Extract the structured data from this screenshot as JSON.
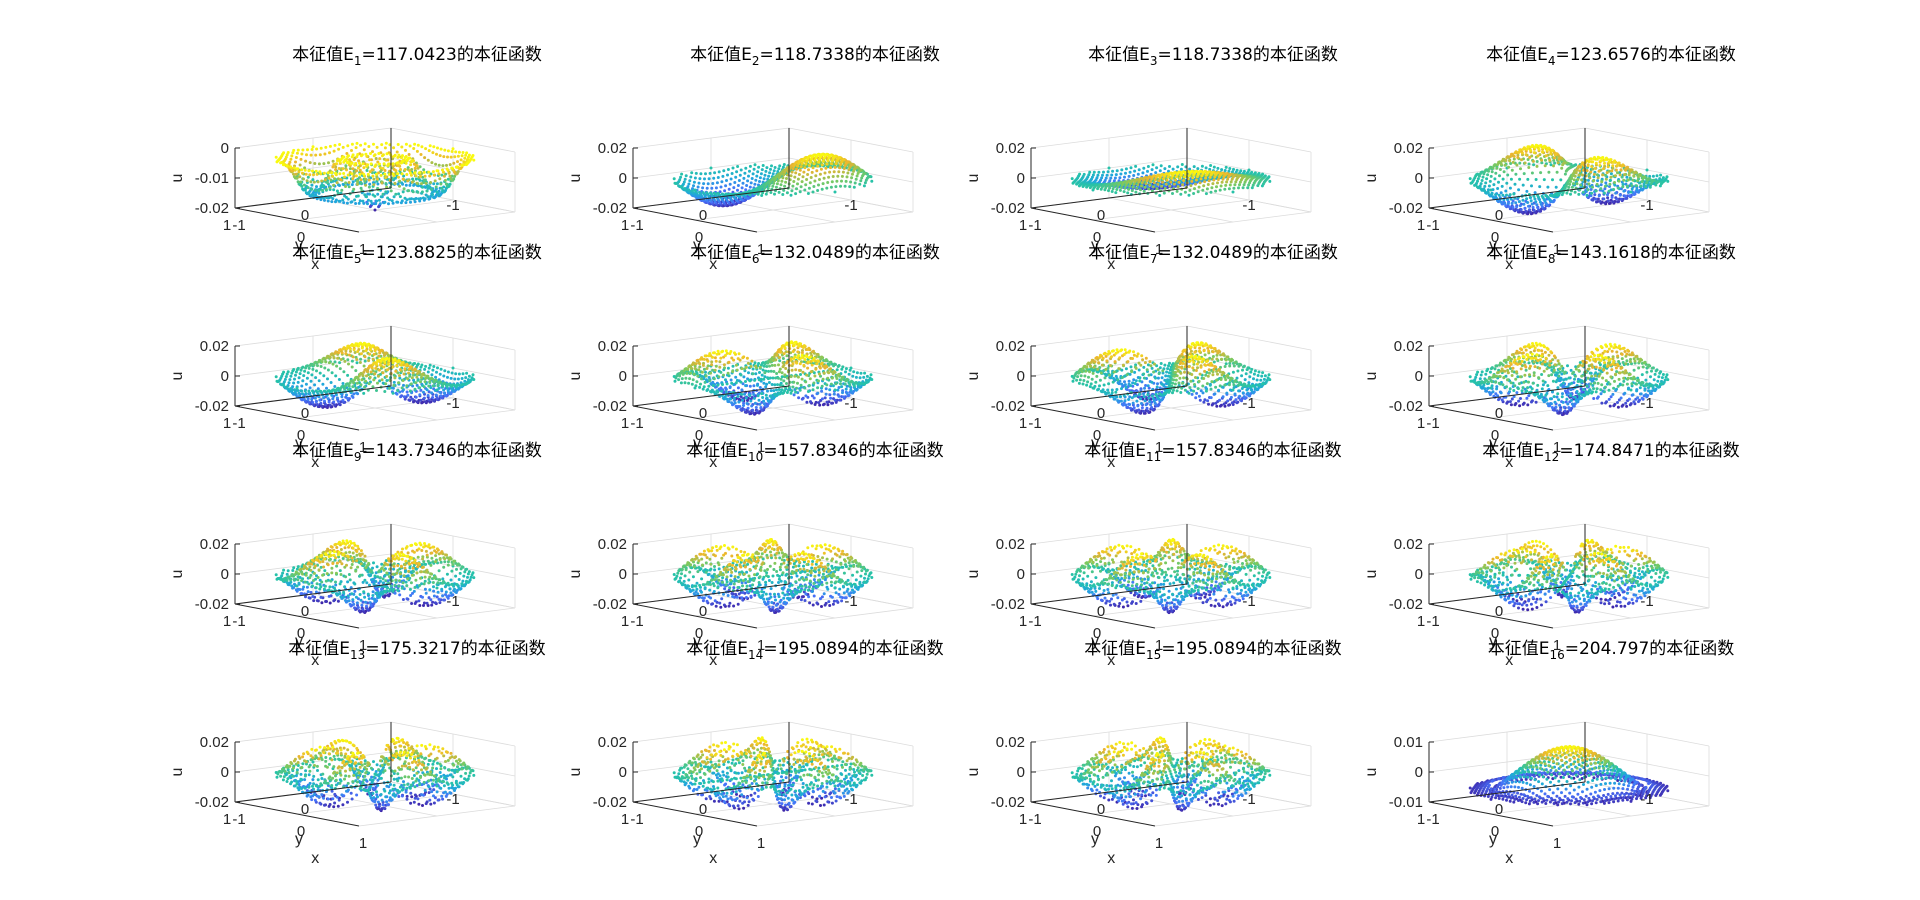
{
  "figure": {
    "background": "#ffffff",
    "colormap": "parula",
    "colormap_colors": [
      "#3e26a8",
      "#4772fa",
      "#1fa8db",
      "#26c2a9",
      "#7dc95e",
      "#eab32f",
      "#f9fb0e"
    ]
  },
  "chart_data": [
    {
      "type": "surface",
      "title_prefix": "本征值E",
      "subscript": "1",
      "title_suffix": "=117.0423的本征函数",
      "eigenvalue": 117.0423,
      "mode": "radial0",
      "zlim": [
        -0.02,
        0
      ],
      "zticks": [
        "0",
        "-0.01",
        "-0.02"
      ],
      "xticks": [
        "-1",
        "0",
        "1"
      ],
      "yticks": [
        "-1",
        "0",
        "1"
      ],
      "xlabel": "x",
      "ylabel": "y",
      "zlabel": "u"
    },
    {
      "type": "surface",
      "title_prefix": "本征值E",
      "subscript": "2",
      "title_suffix": "=118.7338的本征函数",
      "eigenvalue": 118.7338,
      "mode": "dipole",
      "zlim": [
        -0.02,
        0.02
      ],
      "zticks": [
        "0.02",
        "0",
        "-0.02"
      ],
      "xticks": [
        "-1",
        "0",
        "1"
      ],
      "yticks": [
        "-1",
        "0",
        "1"
      ],
      "xlabel": "x",
      "ylabel": "y",
      "zlabel": "u"
    },
    {
      "type": "surface",
      "title_prefix": "本征值E",
      "subscript": "3",
      "title_suffix": "=118.7338的本征函数",
      "eigenvalue": 118.7338,
      "mode": "dipole_flat",
      "zlim": [
        -0.02,
        0.02
      ],
      "zticks": [
        "0.02",
        "0",
        "-0.02"
      ],
      "xticks": [
        "-1",
        "0",
        "1"
      ],
      "yticks": [
        "-1",
        "0",
        "1"
      ],
      "xlabel": "x",
      "ylabel": "y",
      "zlabel": "u"
    },
    {
      "type": "surface",
      "title_prefix": "本征值E",
      "subscript": "4",
      "title_suffix": "=123.6576的本征函数",
      "eigenvalue": 123.6576,
      "mode": "m2",
      "zlim": [
        -0.02,
        0.02
      ],
      "zticks": [
        "0.02",
        "0",
        "-0.02"
      ],
      "xticks": [
        "-1",
        "0",
        "1"
      ],
      "yticks": [
        "-1",
        "0",
        "1"
      ],
      "xlabel": "x",
      "ylabel": "y",
      "zlabel": "u"
    },
    {
      "type": "surface",
      "title_prefix": "本征值E",
      "subscript": "5",
      "title_suffix": "=123.8825的本征函数",
      "eigenvalue": 123.8825,
      "mode": "m2b",
      "zlim": [
        -0.02,
        0.02
      ],
      "zticks": [
        "0.02",
        "0",
        "-0.02"
      ],
      "xticks": [
        "-1",
        "0",
        "1"
      ],
      "yticks": [
        "-1",
        "0",
        "1"
      ],
      "xlabel": "x",
      "ylabel": "y",
      "zlabel": "u"
    },
    {
      "type": "surface",
      "title_prefix": "本征值E",
      "subscript": "6",
      "title_suffix": "=132.0489的本征函数",
      "eigenvalue": 132.0489,
      "mode": "m3",
      "zlim": [
        -0.02,
        0.02
      ],
      "zticks": [
        "0.02",
        "0",
        "-0.02"
      ],
      "xticks": [
        "-1",
        "0",
        "1"
      ],
      "yticks": [
        "-1",
        "0",
        "1"
      ],
      "xlabel": "x",
      "ylabel": "y",
      "zlabel": "u"
    },
    {
      "type": "surface",
      "title_prefix": "本征值E",
      "subscript": "7",
      "title_suffix": "=132.0489的本征函数",
      "eigenvalue": 132.0489,
      "mode": "m3b",
      "zlim": [
        -0.02,
        0.02
      ],
      "zticks": [
        "0.02",
        "0",
        "-0.02"
      ],
      "xticks": [
        "-1",
        "0",
        "1"
      ],
      "yticks": [
        "-1",
        "0",
        "1"
      ],
      "xlabel": "x",
      "ylabel": "y",
      "zlabel": "u"
    },
    {
      "type": "surface",
      "title_prefix": "本征值E",
      "subscript": "8",
      "title_suffix": "=143.1618的本征函数",
      "eigenvalue": 143.1618,
      "mode": "m4",
      "zlim": [
        -0.02,
        0.02
      ],
      "zticks": [
        "0.02",
        "0",
        "-0.02"
      ],
      "xticks": [
        "-1",
        "0",
        "1"
      ],
      "yticks": [
        "-1",
        "0",
        "1"
      ],
      "xlabel": "x",
      "ylabel": "y",
      "zlabel": "u"
    },
    {
      "type": "surface",
      "title_prefix": "本征值E",
      "subscript": "9",
      "title_suffix": "=143.7346的本征函数",
      "eigenvalue": 143.7346,
      "mode": "m4b",
      "zlim": [
        -0.02,
        0.02
      ],
      "zticks": [
        "0.02",
        "0",
        "-0.02"
      ],
      "xticks": [
        "-1",
        "0",
        "1"
      ],
      "yticks": [
        "-1",
        "0",
        "1"
      ],
      "xlabel": "x",
      "ylabel": "y",
      "zlabel": "u"
    },
    {
      "type": "surface",
      "title_prefix": "本征值E",
      "subscript": "10",
      "title_suffix": "=157.8346的本征函数",
      "eigenvalue": 157.8346,
      "mode": "m5",
      "zlim": [
        -0.02,
        0.02
      ],
      "zticks": [
        "0.02",
        "0",
        "-0.02"
      ],
      "xticks": [
        "-1",
        "0",
        "1"
      ],
      "yticks": [
        "-1",
        "0",
        "1"
      ],
      "xlabel": "x",
      "ylabel": "y",
      "zlabel": "u"
    },
    {
      "type": "surface",
      "title_prefix": "本征值E",
      "subscript": "11",
      "title_suffix": "=157.8346的本征函数",
      "eigenvalue": 157.8346,
      "mode": "m5b",
      "zlim": [
        -0.02,
        0.02
      ],
      "zticks": [
        "0.02",
        "0",
        "-0.02"
      ],
      "xticks": [
        "-1",
        "0",
        "1"
      ],
      "yticks": [
        "-1",
        "0",
        "1"
      ],
      "xlabel": "x",
      "ylabel": "y",
      "zlabel": "u"
    },
    {
      "type": "surface",
      "title_prefix": "本征值E",
      "subscript": "12",
      "title_suffix": "=174.8471的本征函数",
      "eigenvalue": 174.8471,
      "mode": "m6",
      "zlim": [
        -0.02,
        0.02
      ],
      "zticks": [
        "0.02",
        "0",
        "-0.02"
      ],
      "xticks": [
        "-1",
        "0",
        "1"
      ],
      "yticks": [
        "-1",
        "0",
        "1"
      ],
      "xlabel": "x",
      "ylabel": "y",
      "zlabel": "u"
    },
    {
      "type": "surface",
      "title_prefix": "本征值E",
      "subscript": "13",
      "title_suffix": "=175.3217的本征函数",
      "eigenvalue": 175.3217,
      "mode": "m6b",
      "zlim": [
        -0.02,
        0.02
      ],
      "zticks": [
        "0.02",
        "0",
        "-0.02"
      ],
      "xticks": [
        "-1",
        "0",
        "1"
      ],
      "yticks": [
        "-1",
        "0",
        "1"
      ],
      "xlabel": "x",
      "ylabel": "y",
      "zlabel": "u"
    },
    {
      "type": "surface",
      "title_prefix": "本征值E",
      "subscript": "14",
      "title_suffix": "=195.0894的本征函数",
      "eigenvalue": 195.0894,
      "mode": "m7",
      "zlim": [
        -0.02,
        0.02
      ],
      "zticks": [
        "0.02",
        "0",
        "-0.02"
      ],
      "xticks": [
        "-1",
        "0",
        "1"
      ],
      "yticks": [
        "-1",
        "0",
        "1"
      ],
      "xlabel": "x",
      "ylabel": "y",
      "zlabel": "u"
    },
    {
      "type": "surface",
      "title_prefix": "本征值E",
      "subscript": "15",
      "title_suffix": "=195.0894的本征函数",
      "eigenvalue": 195.0894,
      "mode": "m7b",
      "zlim": [
        -0.02,
        0.02
      ],
      "zticks": [
        "0.02",
        "0",
        "-0.02"
      ],
      "xticks": [
        "-1",
        "0",
        "1"
      ],
      "yticks": [
        "-1",
        "0",
        "1"
      ],
      "xlabel": "x",
      "ylabel": "y",
      "zlabel": "u"
    },
    {
      "type": "surface",
      "title_prefix": "本征值E",
      "subscript": "16",
      "title_suffix": "=204.797的本征函数",
      "eigenvalue": 204.797,
      "mode": "radial1",
      "zlim": [
        -0.01,
        0.01
      ],
      "zticks": [
        "0.01",
        "0",
        "-0.01"
      ],
      "xticks": [
        "-1",
        "0",
        "1"
      ],
      "yticks": [
        "-1",
        "0",
        "1"
      ],
      "xlabel": "x",
      "ylabel": "y",
      "zlabel": "u"
    }
  ]
}
